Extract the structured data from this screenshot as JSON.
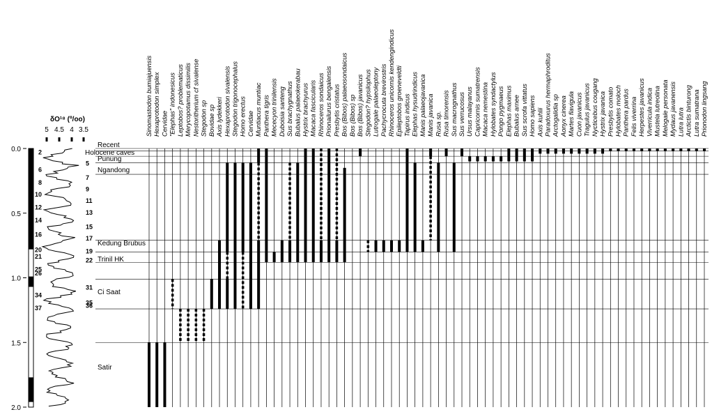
{
  "depth_axis": {
    "ticks": [
      "0.0",
      "0.5",
      "1.0",
      "1.5",
      "2.0"
    ],
    "tick_values": [
      0.0,
      0.5,
      1.0,
      1.5,
      2.0
    ]
  },
  "isotope_curve": {
    "title": "δO¹⁸ (º/oo)",
    "ticks": [
      "5",
      "4.5",
      "4",
      "3.5"
    ],
    "stages": [
      {
        "label": "2",
        "age": 0.025
      },
      {
        "label": "5",
        "age": 0.11
      },
      {
        "label": "6",
        "age": 0.16
      },
      {
        "label": "7",
        "age": 0.22
      },
      {
        "label": "8",
        "age": 0.26
      },
      {
        "label": "9",
        "age": 0.31
      },
      {
        "label": "10",
        "age": 0.35
      },
      {
        "label": "11",
        "age": 0.4
      },
      {
        "label": "12",
        "age": 0.45
      },
      {
        "label": "13",
        "age": 0.49
      },
      {
        "label": "14",
        "age": 0.55
      },
      {
        "label": "15",
        "age": 0.6
      },
      {
        "label": "16",
        "age": 0.66
      },
      {
        "label": "17",
        "age": 0.69
      },
      {
        "label": "20",
        "age": 0.78
      },
      {
        "label": "19",
        "age": 0.79
      },
      {
        "label": "21",
        "age": 0.83
      },
      {
        "label": "22",
        "age": 0.86
      },
      {
        "label": "25",
        "age": 0.93
      },
      {
        "label": "26",
        "age": 0.96
      },
      {
        "label": "31",
        "age": 1.07
      },
      {
        "label": "34",
        "age": 1.13
      },
      {
        "label": "35",
        "age": 1.19
      },
      {
        "label": "36",
        "age": 1.21
      },
      {
        "label": "37",
        "age": 1.23
      }
    ]
  },
  "faunal_units": [
    {
      "name": "Recent",
      "age": 0.0
    },
    {
      "name": "Holocene caves",
      "age": 0.04
    },
    {
      "name": "Punung",
      "age": 0.08
    },
    {
      "name": "Ngandong",
      "age": 0.15
    },
    {
      "name": "Kedung Brubus",
      "age": 0.73
    },
    {
      "name": "Trinil HK",
      "age": 0.88
    },
    {
      "name": "Ci Saat",
      "age": 1.1
    },
    {
      "name": "Satir",
      "age": 1.75
    }
  ],
  "boundaries": [
    0.0,
    0.02,
    0.06,
    0.11,
    0.2,
    0.71,
    0.8,
    0.88,
    1.01,
    1.24,
    1.5
  ],
  "taxa": [
    {
      "name": "Sinomastodon bumiajuensis",
      "segments": [
        {
          "from": 1.5,
          "to": 2.0,
          "style": "thick"
        }
      ],
      "thin_top": 0.0
    },
    {
      "name": "Hexaprotodon simplex",
      "segments": [
        {
          "from": 1.5,
          "to": 2.0,
          "style": "thick"
        }
      ],
      "thin_top": 0.0
    },
    {
      "name": "Cervidae",
      "segments": [
        {
          "from": 1.5,
          "to": 2.0,
          "style": "thick"
        }
      ],
      "thin_top": 0.0
    },
    {
      "name": "\"Elephas\" indonesicus",
      "segments": [
        {
          "from": 1.01,
          "to": 1.24,
          "style": "dashed"
        }
      ],
      "thin_top": 0.0
    },
    {
      "name": "Leptobos? problematicus",
      "segments": [
        {
          "from": 1.24,
          "to": 1.5,
          "style": "dashed"
        }
      ],
      "thin_top": 0.0
    },
    {
      "name": "Merycopotamus dissimilis",
      "segments": [
        {
          "from": 1.24,
          "to": 1.5,
          "style": "dashed"
        }
      ],
      "thin_top": 0.0
    },
    {
      "name": "Nestoritherium cf sivalense",
      "segments": [
        {
          "from": 1.24,
          "to": 1.5,
          "style": "dashed"
        }
      ],
      "thin_top": 0.0
    },
    {
      "name": "Stegodon sp",
      "segments": [
        {
          "from": 1.24,
          "to": 1.5,
          "style": "dashed"
        }
      ],
      "thin_top": 0.0
    },
    {
      "name": "Bovidae sp",
      "segments": [
        {
          "from": 1.01,
          "to": 1.24,
          "style": "thick"
        }
      ],
      "thin_top": 0.0
    },
    {
      "name": "Axis lydekkeri",
      "segments": [
        {
          "from": 0.71,
          "to": 1.24,
          "style": "thick"
        }
      ],
      "thin_top": 0.0
    },
    {
      "name": "Hexaprotodon sivalensis",
      "segments": [
        {
          "from": 0.11,
          "to": 0.8,
          "style": "thick"
        },
        {
          "from": 0.8,
          "to": 1.01,
          "style": "dashed"
        },
        {
          "from": 1.01,
          "to": 1.24,
          "style": "thick"
        }
      ],
      "thin_top": 0.0
    },
    {
      "name": "Stegodon trigonocephalus",
      "segments": [
        {
          "from": 0.11,
          "to": 1.24,
          "style": "thick"
        }
      ],
      "thin_top": 0.0
    },
    {
      "name": "Homo erectus",
      "segments": [
        {
          "from": 0.11,
          "to": 0.8,
          "style": "thick"
        },
        {
          "from": 0.8,
          "to": 1.24,
          "style": "dashed"
        }
      ],
      "thin_top": 0.0
    },
    {
      "name": "Cervidae",
      "segments": [
        {
          "from": 0.11,
          "to": 1.24,
          "style": "thick"
        }
      ],
      "thin_top": 0.0
    },
    {
      "name": "Muntiacus muntiac",
      "segments": [
        {
          "from": 0.0,
          "to": 0.11,
          "style": "thick"
        },
        {
          "from": 0.11,
          "to": 0.71,
          "style": "dashed"
        },
        {
          "from": 0.71,
          "to": 1.24,
          "style": "thick"
        }
      ],
      "thin_top": 0.0
    },
    {
      "name": "Panthera tigris",
      "segments": [
        {
          "from": 0.0,
          "to": 0.71,
          "style": "thick"
        },
        {
          "from": 0.71,
          "to": 0.88,
          "style": "thick"
        }
      ],
      "thin_top": 0.0
    },
    {
      "name": "Mececyon trinilensis",
      "segments": [
        {
          "from": 0.8,
          "to": 0.88,
          "style": "thick"
        }
      ],
      "thin_top": 0.0
    },
    {
      "name": "Duboisia santeng",
      "segments": [
        {
          "from": 0.71,
          "to": 0.88,
          "style": "thick"
        }
      ],
      "thin_top": 0.0
    },
    {
      "name": "Sus brachygnathus",
      "segments": [
        {
          "from": 0.11,
          "to": 0.71,
          "style": "dashed"
        },
        {
          "from": 0.71,
          "to": 0.88,
          "style": "thick"
        }
      ],
      "thin_top": 0.0
    },
    {
      "name": "Bubalus palaeokerabau",
      "segments": [
        {
          "from": 0.11,
          "to": 0.88,
          "style": "thick"
        }
      ],
      "thin_top": 0.0
    },
    {
      "name": "Hystrix brachyurus",
      "segments": [
        {
          "from": 0.0,
          "to": 0.88,
          "style": "thick"
        }
      ],
      "thin_top": 0.0
    },
    {
      "name": "Macaca fascicularis",
      "segments": [
        {
          "from": 0.0,
          "to": 0.88,
          "style": "thick"
        }
      ],
      "thin_top": 0.0
    },
    {
      "name": "Rhinoceros sondaicus",
      "segments": [
        {
          "from": 0.0,
          "to": 0.71,
          "style": "dashed"
        },
        {
          "from": 0.71,
          "to": 0.88,
          "style": "thick"
        }
      ],
      "thin_top": 0.0
    },
    {
      "name": "Prionailurus bengalensis",
      "segments": [
        {
          "from": 0.0,
          "to": 0.88,
          "style": "thick"
        }
      ],
      "thin_top": 0.0
    },
    {
      "name": "Presbytis cristatus",
      "segments": [
        {
          "from": 0.0,
          "to": 0.71,
          "style": "dashed"
        },
        {
          "from": 0.71,
          "to": 0.88,
          "style": "thick"
        }
      ],
      "thin_top": 0.0
    },
    {
      "name": "Bos (Bibos) palaeosondaicus",
      "segments": [
        {
          "from": 0.15,
          "to": 0.88,
          "style": "thick"
        }
      ],
      "thin_top": 0.0
    },
    {
      "name": "Bos (Bibos) sp",
      "segments": [],
      "thin_top": 0.0
    },
    {
      "name": "Bos (Bibos) javanicus",
      "segments": [
        {
          "from": 0.0,
          "to": 0.06,
          "style": "thick"
        }
      ],
      "thin_top": 0.0
    },
    {
      "name": "Stegodon? hypsilophus",
      "segments": [
        {
          "from": 0.71,
          "to": 0.8,
          "style": "dashed"
        }
      ],
      "thin_top": 0.0
    },
    {
      "name": "Lutrogale palaeoleptony",
      "segments": [
        {
          "from": 0.71,
          "to": 0.8,
          "style": "thick"
        }
      ],
      "thin_top": 0.0
    },
    {
      "name": "Pachycrocuta brevirostris",
      "segments": [
        {
          "from": 0.71,
          "to": 0.8,
          "style": "thick"
        }
      ],
      "thin_top": 0.0
    },
    {
      "name": "Rhinoceros unicornis kendengindicus",
      "segments": [
        {
          "from": 0.71,
          "to": 0.8,
          "style": "thick"
        }
      ],
      "thin_top": 0.0
    },
    {
      "name": "Epileptobos groeneveldti",
      "segments": [
        {
          "from": 0.71,
          "to": 0.8,
          "style": "thick"
        }
      ],
      "thin_top": 0.0
    },
    {
      "name": "Tapirus indicus",
      "segments": [
        {
          "from": 0.0,
          "to": 0.8,
          "style": "thick"
        }
      ],
      "thin_top": 0.0
    },
    {
      "name": "Elephas hysudrindicus",
      "segments": [
        {
          "from": 0.11,
          "to": 0.8,
          "style": "thick"
        }
      ],
      "thin_top": 0.0
    },
    {
      "name": "Manis palaeojavanica",
      "segments": [
        {
          "from": 0.71,
          "to": 0.8,
          "style": "thick"
        }
      ],
      "thin_top": 0.0
    },
    {
      "name": "Manis javanica",
      "segments": [
        {
          "from": 0.0,
          "to": 0.06,
          "style": "thick"
        },
        {
          "from": 0.06,
          "to": 0.71,
          "style": "dashed"
        }
      ],
      "thin_top": 0.0
    },
    {
      "name": "Rusa sp.",
      "segments": [
        {
          "from": 0.11,
          "to": 0.8,
          "style": "thick"
        }
      ],
      "thin_top": 0.0
    },
    {
      "name": "Rusa timorensis",
      "segments": [
        {
          "from": 0.0,
          "to": 0.06,
          "style": "thick"
        }
      ],
      "thin_top": 0.0
    },
    {
      "name": "Sus macrognathus",
      "segments": [
        {
          "from": 0.11,
          "to": 0.8,
          "style": "thick"
        }
      ],
      "thin_top": 0.0
    },
    {
      "name": "Sus verrucosus",
      "segments": [
        {
          "from": 0.0,
          "to": 0.06,
          "style": "thick"
        }
      ],
      "thin_top": 0.0
    },
    {
      "name": "Ursus malayanus",
      "segments": [
        {
          "from": 0.06,
          "to": 0.1,
          "style": "thick"
        }
      ],
      "thin_top": 0.0
    },
    {
      "name": "Capricornis sumatrensis",
      "segments": [
        {
          "from": 0.06,
          "to": 0.1,
          "style": "thick"
        }
      ],
      "thin_top": 0.0
    },
    {
      "name": "Macaca nemestina",
      "segments": [
        {
          "from": 0.06,
          "to": 0.1,
          "style": "thick"
        }
      ],
      "thin_top": 0.0
    },
    {
      "name": "Hylobates syndactylus",
      "segments": [
        {
          "from": 0.06,
          "to": 0.1,
          "style": "thick"
        }
      ],
      "thin_top": 0.0
    },
    {
      "name": "Pongo pygmaeus",
      "segments": [
        {
          "from": 0.06,
          "to": 0.1,
          "style": "thick"
        }
      ],
      "thin_top": 0.0
    },
    {
      "name": "Elephas maximus",
      "segments": [
        {
          "from": 0.0,
          "to": 0.1,
          "style": "thick"
        }
      ],
      "thin_top": 0.0
    },
    {
      "name": "Bubalus arnee",
      "segments": [
        {
          "from": 0.0,
          "to": 0.1,
          "style": "thick"
        }
      ],
      "thin_top": 0.0
    },
    {
      "name": "Sus scrofa vittatus",
      "segments": [
        {
          "from": 0.0,
          "to": 0.1,
          "style": "thick"
        }
      ],
      "thin_top": 0.0
    },
    {
      "name": "Homo sapiens",
      "segments": [
        {
          "from": 0.0,
          "to": 0.1,
          "style": "thick"
        }
      ],
      "thin_top": 0.0
    },
    {
      "name": "Axis kuhlii",
      "segments": [
        {
          "from": 0.0,
          "to": 0.04,
          "style": "thick"
        }
      ],
      "thin_top": 0.0
    },
    {
      "name": "Paradoxurus hermaphroditus",
      "segments": [
        {
          "from": 0.0,
          "to": 0.04,
          "style": "thick"
        }
      ],
      "thin_top": 0.0
    },
    {
      "name": "Arctogalidia sp",
      "segments": [
        {
          "from": 0.0,
          "to": 0.04,
          "style": "thick"
        }
      ],
      "thin_top": 0.0
    },
    {
      "name": "Aonyx cinerea",
      "segments": [
        {
          "from": 0.0,
          "to": 0.04,
          "style": "thick"
        }
      ],
      "thin_top": 0.0
    },
    {
      "name": "Martes flavigula",
      "segments": [
        {
          "from": 0.0,
          "to": 0.04,
          "style": "thick"
        }
      ],
      "thin_top": 0.0
    },
    {
      "name": "Cuon javanicus",
      "segments": [
        {
          "from": 0.0,
          "to": 0.04,
          "style": "thick"
        }
      ],
      "thin_top": 0.0
    },
    {
      "name": "Tragulus javanicus",
      "segments": [
        {
          "from": 0.0,
          "to": 0.04,
          "style": "thick"
        }
      ],
      "thin_top": 0.0
    },
    {
      "name": "Nycticebus cougang",
      "segments": [
        {
          "from": 0.0,
          "to": 0.04,
          "style": "thick"
        }
      ],
      "thin_top": 0.0
    },
    {
      "name": "Hystrix javanica",
      "segments": [
        {
          "from": 0.0,
          "to": 0.04,
          "style": "thick"
        }
      ],
      "thin_top": 0.0
    },
    {
      "name": "Presbytis comato",
      "segments": [
        {
          "from": 0.0,
          "to": 0.02,
          "style": "thick"
        }
      ],
      "thin_top": 0.0
    },
    {
      "name": "Hylobates moloch",
      "segments": [
        {
          "from": 0.0,
          "to": 0.02,
          "style": "thick"
        }
      ],
      "thin_top": 0.0
    },
    {
      "name": "Panthera pardus",
      "segments": [
        {
          "from": 0.0,
          "to": 0.02,
          "style": "thick"
        }
      ],
      "thin_top": 0.0
    },
    {
      "name": "Felis viverrina",
      "segments": [
        {
          "from": 0.0,
          "to": 0.02,
          "style": "thick"
        }
      ],
      "thin_top": 0.0
    },
    {
      "name": "Herpestes javanicus",
      "segments": [
        {
          "from": 0.0,
          "to": 0.02,
          "style": "thick"
        }
      ],
      "thin_top": 0.0
    },
    {
      "name": "Viverricula indica",
      "segments": [
        {
          "from": 0.0,
          "to": 0.02,
          "style": "thick"
        }
      ],
      "thin_top": 0.0
    },
    {
      "name": "Mustela lutreolina",
      "segments": [
        {
          "from": 0.0,
          "to": 0.02,
          "style": "thick"
        }
      ],
      "thin_top": 0.0
    },
    {
      "name": "Melogale personata",
      "segments": [
        {
          "from": 0.0,
          "to": 0.02,
          "style": "thick"
        }
      ],
      "thin_top": 0.0
    },
    {
      "name": "Mydaus javanensis",
      "segments": [
        {
          "from": 0.0,
          "to": 0.02,
          "style": "thick"
        }
      ],
      "thin_top": 0.0
    },
    {
      "name": "Lutra lutra",
      "segments": [
        {
          "from": 0.0,
          "to": 0.02,
          "style": "thick"
        }
      ],
      "thin_top": 0.0
    },
    {
      "name": "Arctictis binturong",
      "segments": [
        {
          "from": 0.0,
          "to": 0.02,
          "style": "thick"
        }
      ],
      "thin_top": 0.0
    },
    {
      "name": "Lutra sumatrana",
      "segments": [
        {
          "from": 0.0,
          "to": 0.02,
          "style": "thick"
        }
      ],
      "thin_top": 0.0
    },
    {
      "name": "Prionodon lingsang",
      "segments": [
        {
          "from": 0.0,
          "to": 0.02,
          "style": "thick"
        }
      ],
      "thin_top": 0.0
    }
  ]
}
